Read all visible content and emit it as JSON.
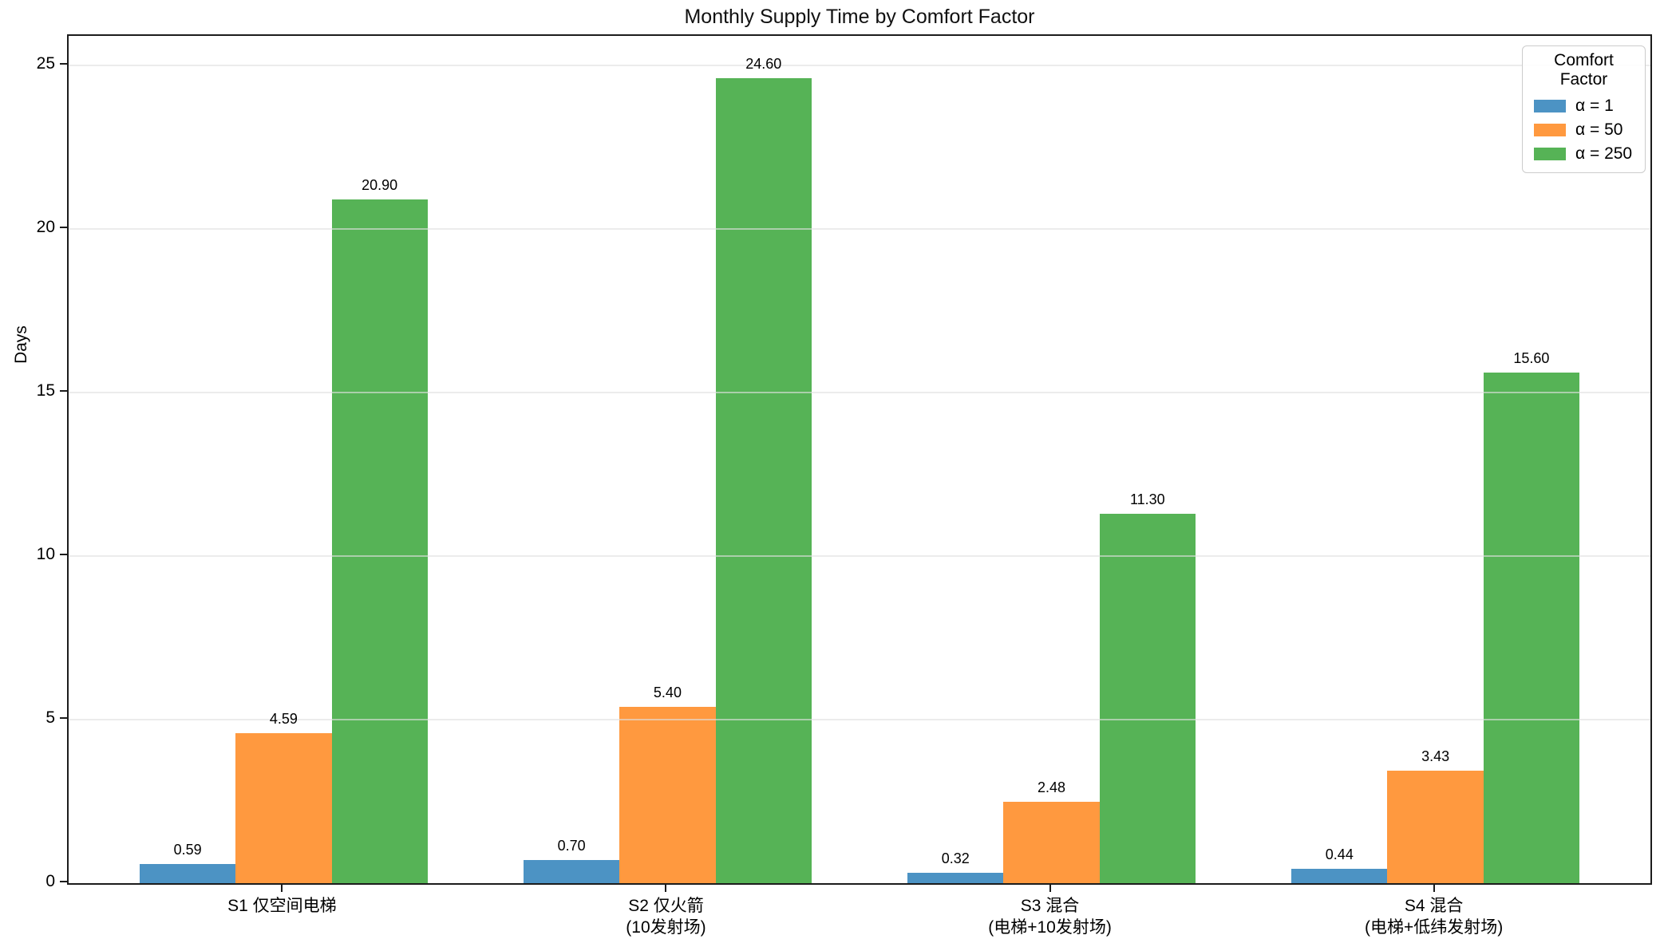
{
  "figure": {
    "title": "Monthly Supply Time by Comfort Factor",
    "ylabel": "Days"
  },
  "legend": {
    "title": "Comfort Factor",
    "entries": [
      {
        "label": "α = 1",
        "color": "#4C93C4"
      },
      {
        "label": "α = 50",
        "color": "#FF993F"
      },
      {
        "label": "α = 250",
        "color": "#56B356"
      }
    ]
  },
  "chart_data": {
    "type": "bar",
    "title": "Monthly Supply Time by Comfort Factor",
    "xlabel": "",
    "ylabel": "Days",
    "categories": [
      "S1 仅空间电梯",
      "S2 仅火箭\n(10发射场)",
      "S3 混合\n(电梯+10发射场)",
      "S4 混合\n(电梯+低纬发射场)"
    ],
    "series": [
      {
        "name": "α = 1",
        "color": "#4C93C4",
        "values": [
          0.59,
          0.7,
          0.32,
          0.44
        ]
      },
      {
        "name": "α = 50",
        "color": "#FF993F",
        "values": [
          4.59,
          5.4,
          2.48,
          3.43
        ]
      },
      {
        "name": "α = 250",
        "color": "#56B356",
        "values": [
          20.9,
          24.6,
          11.3,
          15.6
        ]
      }
    ],
    "bar_value_labels": [
      [
        "0.59",
        "0.70",
        "0.32",
        "0.44"
      ],
      [
        "4.59",
        "5.40",
        "2.48",
        "3.43"
      ],
      [
        "20.90",
        "24.60",
        "11.30",
        "15.60"
      ]
    ],
    "ylim": [
      0,
      25.9
    ],
    "yticks": [
      0,
      5,
      10,
      15,
      20,
      25
    ],
    "xlim": [
      -0.56,
      3.56
    ],
    "bar_width": 0.25,
    "grid": "horizontal gridlines at yticks, drawn above bars",
    "legend_position": "upper right",
    "legend_title": "Comfort Factor"
  }
}
